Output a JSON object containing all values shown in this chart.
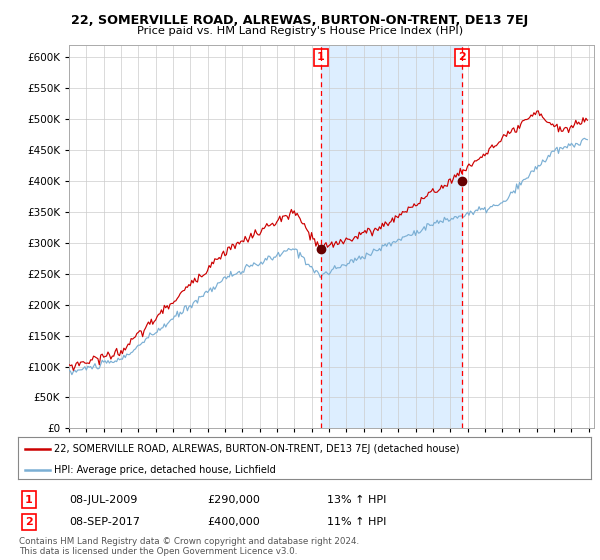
{
  "title": "22, SOMERVILLE ROAD, ALREWAS, BURTON-ON-TRENT, DE13 7EJ",
  "subtitle": "Price paid vs. HM Land Registry's House Price Index (HPI)",
  "red_label": "22, SOMERVILLE ROAD, ALREWAS, BURTON-ON-TRENT, DE13 7EJ (detached house)",
  "blue_label": "HPI: Average price, detached house, Lichfield",
  "annotation1": {
    "num": "1",
    "date": "08-JUL-2009",
    "price": "£290,000",
    "pct": "13% ↑ HPI"
  },
  "annotation2": {
    "num": "2",
    "date": "08-SEP-2017",
    "price": "£400,000",
    "pct": "11% ↑ HPI"
  },
  "footnote1": "Contains HM Land Registry data © Crown copyright and database right 2024.",
  "footnote2": "This data is licensed under the Open Government Licence v3.0.",
  "red_color": "#cc0000",
  "blue_color": "#7bafd4",
  "shade_color": "#ddeeff",
  "background_color": "#ffffff",
  "grid_color": "#cccccc",
  "ylim": [
    0,
    620000
  ],
  "yticks": [
    0,
    50000,
    100000,
    150000,
    200000,
    250000,
    300000,
    350000,
    400000,
    450000,
    500000,
    550000,
    600000
  ],
  "year_start": 1995,
  "year_end": 2025,
  "sale1_yr": 2009.54,
  "sale1_price": 290000,
  "sale2_yr": 2017.69,
  "sale2_price": 400000
}
